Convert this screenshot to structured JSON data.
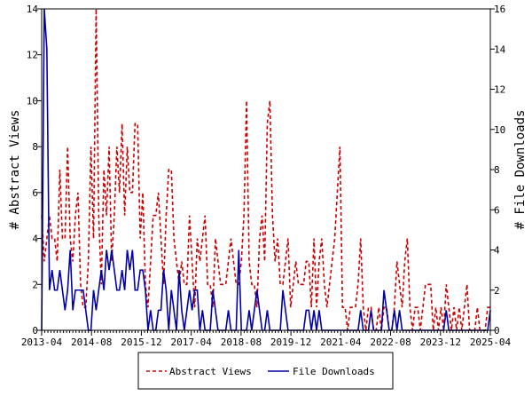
{
  "chart_data": {
    "type": "line",
    "x_range": [
      "2013-04",
      "2025-04"
    ],
    "x_tick_labels": [
      "2013-04",
      "2014-08",
      "2015-12",
      "2017-04",
      "2018-08",
      "2019-12",
      "2021-04",
      "2022-08",
      "2023-12",
      "2025-04"
    ],
    "y_left": {
      "label": "# Abstract Views",
      "ylim": [
        0,
        14
      ],
      "ticks": [
        "0",
        "2",
        "4",
        "6",
        "8",
        "10",
        "12",
        "14"
      ]
    },
    "y_right": {
      "label": "# File Downloads",
      "ylim": [
        0,
        16
      ],
      "ticks": [
        "0",
        "2",
        "4",
        "6",
        "8",
        "10",
        "12",
        "14",
        "16"
      ]
    },
    "grid": false,
    "legend_placement": "bottom-center",
    "series": [
      {
        "name": "Abstract Views",
        "axis": "left",
        "style": "dashed",
        "color": "#cc0000",
        "values": [
          5,
          3,
          4,
          5,
          4,
          4,
          3,
          7,
          4,
          4,
          8,
          4,
          3,
          5,
          6,
          2,
          1,
          1,
          3,
          8,
          4,
          14,
          5,
          2,
          7,
          5,
          8,
          3,
          5,
          8,
          6,
          9,
          5,
          8,
          6,
          6,
          9,
          9,
          4,
          6,
          2,
          1,
          3,
          5,
          5,
          6,
          4,
          2,
          5,
          7,
          7,
          4,
          3,
          2,
          3,
          2,
          2,
          5,
          3,
          1,
          4,
          3,
          4,
          5,
          2,
          2,
          1,
          4,
          3,
          2,
          2,
          2,
          3,
          4,
          3,
          2,
          2,
          3,
          5,
          10,
          3,
          2,
          2,
          1,
          4,
          5,
          3,
          9,
          10,
          5,
          3,
          4,
          2,
          2,
          3,
          4,
          1,
          2,
          3,
          2,
          2,
          2,
          3,
          3,
          1,
          4,
          1,
          3,
          4,
          2,
          1,
          2,
          3,
          4,
          6,
          8,
          1,
          1,
          0,
          1,
          1,
          1,
          2,
          4,
          1,
          0,
          1,
          1,
          0,
          0,
          1,
          0,
          1,
          1,
          0,
          0,
          1,
          3,
          2,
          1,
          3,
          4,
          1,
          0,
          1,
          1,
          0,
          1,
          2,
          2,
          2,
          0,
          1,
          0,
          1,
          0,
          2,
          1,
          0,
          1,
          0,
          1,
          0,
          1,
          2,
          0,
          0,
          0,
          1,
          0,
          0,
          0,
          1,
          1
        ]
      },
      {
        "name": "File Downloads",
        "axis": "right",
        "style": "solid",
        "color": "#0000aa",
        "values": [
          0,
          16,
          14,
          2,
          3,
          2,
          2,
          3,
          2,
          1,
          2,
          4,
          1,
          2,
          2,
          2,
          2,
          1,
          0,
          0,
          2,
          1,
          2,
          3,
          2,
          4,
          3,
          4,
          3,
          2,
          2,
          3,
          2,
          4,
          3,
          4,
          2,
          2,
          3,
          3,
          2,
          0,
          1,
          0,
          0,
          1,
          1,
          3,
          2,
          0,
          2,
          1,
          0,
          3,
          1,
          0,
          1,
          2,
          1,
          2,
          2,
          0,
          1,
          0,
          0,
          0,
          2,
          1,
          0,
          0,
          0,
          0,
          1,
          0,
          0,
          0,
          4,
          0,
          0,
          0,
          1,
          0,
          1,
          2,
          1,
          0,
          0,
          1,
          0,
          0,
          0,
          0,
          0,
          2,
          1,
          0,
          0,
          0,
          0,
          0,
          0,
          0,
          1,
          1,
          0,
          1,
          0,
          1,
          0,
          0,
          0,
          0,
          0,
          0,
          0,
          0,
          0,
          0,
          0,
          0,
          0,
          0,
          0,
          1,
          0,
          0,
          0,
          1,
          0,
          0,
          0,
          0,
          2,
          1,
          0,
          0,
          1,
          0,
          1,
          0,
          0,
          0,
          0,
          0,
          0,
          0,
          0,
          0,
          0,
          0,
          0,
          0,
          0,
          0,
          0,
          0,
          1,
          0,
          0,
          0,
          0,
          0,
          0,
          0,
          0,
          0,
          0,
          0,
          0,
          0,
          0,
          0,
          0,
          1
        ]
      }
    ]
  }
}
